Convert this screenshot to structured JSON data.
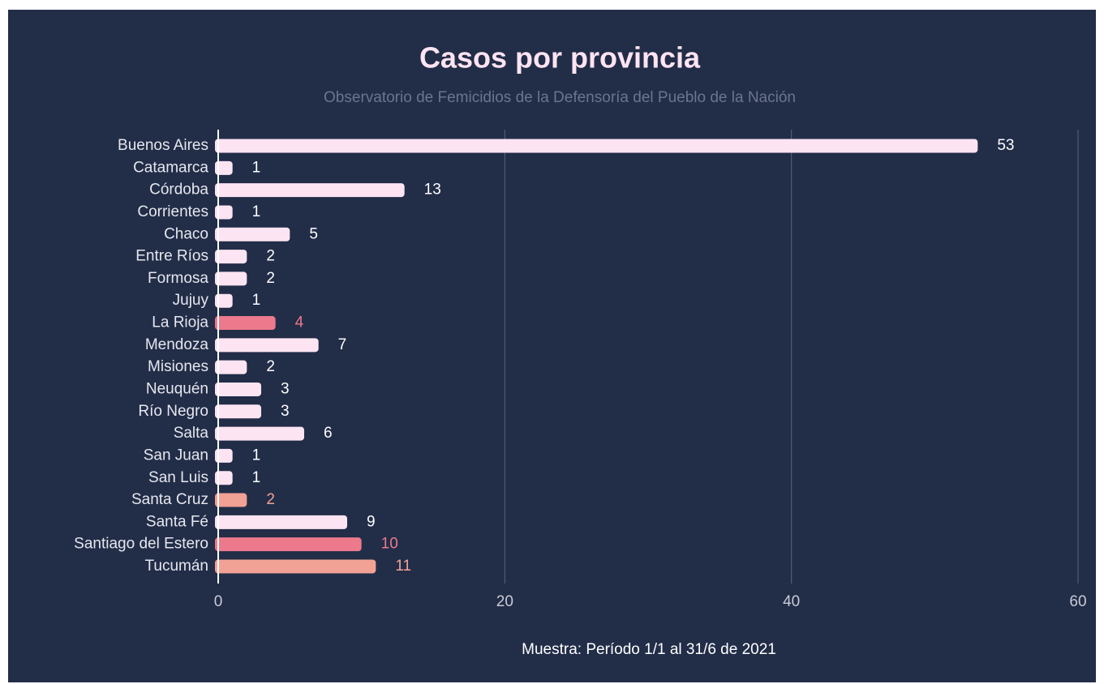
{
  "chart_data": {
    "type": "bar",
    "title": "Casos por provincia",
    "subtitle": "Observatorio de Femicidios de la Defensoría del Pueblo de la Nación",
    "x_label": "Muestra: Período 1/1 al 31/6 de 2021",
    "categories": [
      "Buenos Aires",
      "Catamarca",
      "Córdoba",
      "Corrientes",
      "Chaco",
      "Entre Ríos",
      "Formosa",
      "Jujuy",
      "La Rioja",
      "Mendoza",
      "Misiones",
      "Neuquén",
      "Río Negro",
      "Salta",
      "San Juan",
      "San Luis",
      "Santa Cruz",
      "Santa Fé",
      "Santiago del Estero",
      "Tucumán"
    ],
    "values": [
      53,
      1,
      13,
      1,
      5,
      2,
      2,
      1,
      4,
      7,
      2,
      3,
      3,
      6,
      1,
      1,
      2,
      9,
      10,
      11
    ],
    "colors": [
      "#fde4f2",
      "#fde4f2",
      "#fde4f2",
      "#fde4f2",
      "#fde4f2",
      "#fde4f2",
      "#fde4f2",
      "#fde4f2",
      "#ec7a8c",
      "#fde4f2",
      "#fde4f2",
      "#fde4f2",
      "#fde4f2",
      "#fde4f2",
      "#fde4f2",
      "#fde4f2",
      "#f2a195",
      "#fde4f2",
      "#ec7a8c",
      "#f2a195"
    ],
    "xlim": [
      0,
      60
    ],
    "xticks": [
      0,
      20,
      40,
      60
    ],
    "grid": true
  }
}
